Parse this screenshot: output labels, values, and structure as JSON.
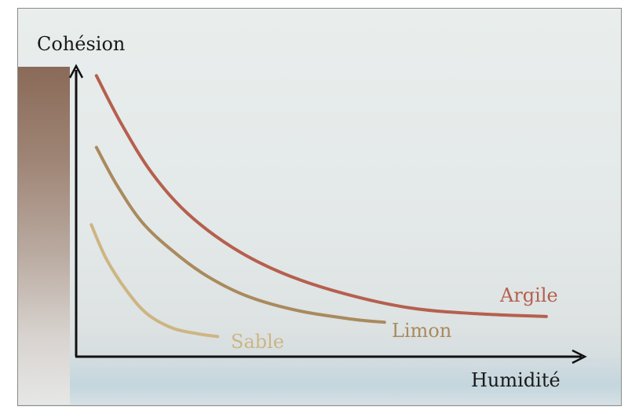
{
  "chart_data": {
    "type": "line",
    "xlabel": "Humidité",
    "ylabel": "Cohésion",
    "x_ticks": false,
    "y_ticks": false,
    "grid": false,
    "series": [
      {
        "name": "Argile",
        "color": "#b5604e",
        "points": [
          [
            0.04,
            0.98
          ],
          [
            0.09,
            0.81
          ],
          [
            0.15,
            0.64
          ],
          [
            0.22,
            0.5
          ],
          [
            0.31,
            0.38
          ],
          [
            0.41,
            0.29
          ],
          [
            0.53,
            0.22
          ],
          [
            0.66,
            0.17
          ],
          [
            0.79,
            0.15
          ],
          [
            0.93,
            0.14
          ]
        ]
      },
      {
        "name": "Limon",
        "color": "#a98a5e",
        "points": [
          [
            0.04,
            0.73
          ],
          [
            0.08,
            0.6
          ],
          [
            0.13,
            0.47
          ],
          [
            0.19,
            0.37
          ],
          [
            0.26,
            0.28
          ],
          [
            0.34,
            0.21
          ],
          [
            0.44,
            0.16
          ],
          [
            0.55,
            0.13
          ],
          [
            0.61,
            0.12
          ]
        ]
      },
      {
        "name": "Sable",
        "color": "#cdb583",
        "points": [
          [
            0.03,
            0.46
          ],
          [
            0.06,
            0.34
          ],
          [
            0.1,
            0.23
          ],
          [
            0.14,
            0.15
          ],
          [
            0.19,
            0.1
          ],
          [
            0.24,
            0.08
          ],
          [
            0.28,
            0.07
          ]
        ]
      }
    ]
  }
}
